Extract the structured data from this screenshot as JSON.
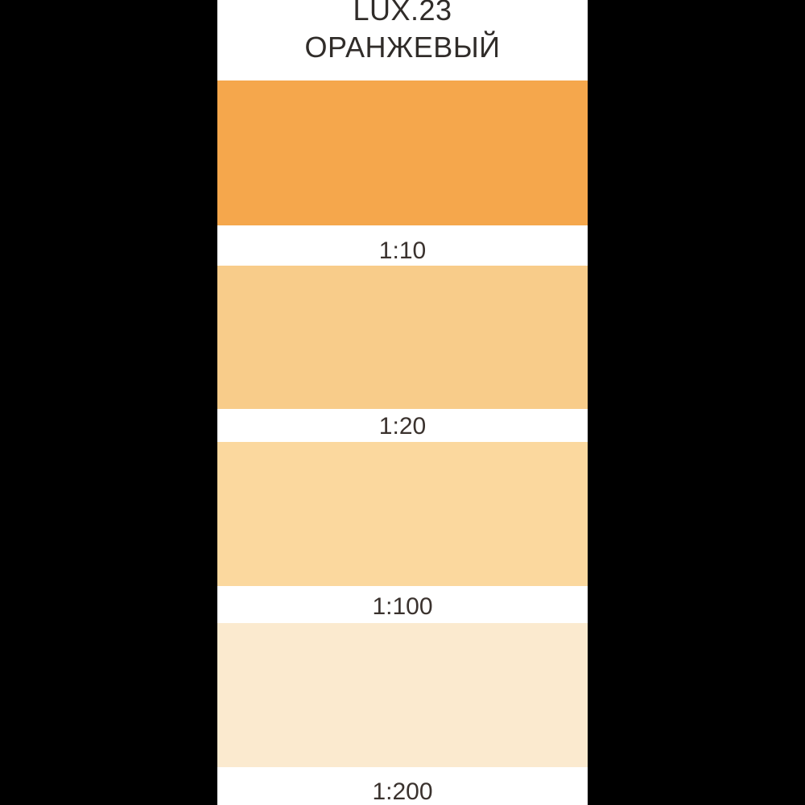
{
  "palette_card": {
    "code": "LUX.23",
    "name": "ОРАНЖЕВЫЙ",
    "text_color": "#302C29",
    "label_color": "#3A322E",
    "card_background": "#FFFFFF",
    "frame_background": "#000000",
    "swatches": [
      {
        "ratio": "1:10",
        "color": "#F5A74C"
      },
      {
        "ratio": "1:20",
        "color": "#F8CC8A"
      },
      {
        "ratio": "1:100",
        "color": "#FBD89E"
      },
      {
        "ratio": "1:200",
        "color": "#FBEACF"
      }
    ]
  }
}
